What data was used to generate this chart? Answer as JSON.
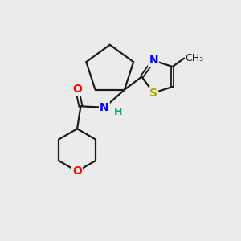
{
  "background_color": "#ebebeb",
  "bond_color": "#1a1a1a",
  "atom_colors": {
    "O": "#ff0000",
    "N": "#0000ff",
    "S": "#aaaa00",
    "H": "#00aa88"
  },
  "font_size_atoms": 10,
  "font_size_methyl": 9,
  "figsize": [
    3.0,
    3.0
  ],
  "dpi": 100
}
